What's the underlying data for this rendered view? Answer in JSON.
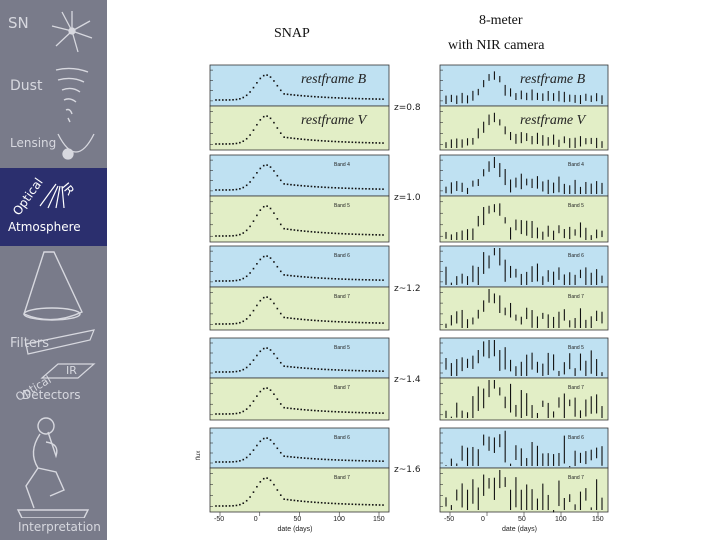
{
  "sidebar": {
    "items": [
      {
        "label": "SN",
        "icon": "burst-icon"
      },
      {
        "label": "Dust",
        "icon": "tornado-icon"
      },
      {
        "label": "Lensing",
        "icon": "lens-icon"
      },
      {
        "label": "Atmosphere",
        "sub1": "Optical",
        "sub2": "IR",
        "icon": "atmosphere-icon"
      },
      {
        "label": "",
        "icon": "cone-icon"
      },
      {
        "label": "Filters",
        "icon": "filter-icon"
      },
      {
        "label": "Detectors",
        "sub1": "Optical",
        "sub2": "IR",
        "icon": "detector-icon"
      },
      {
        "label": "Interpretation",
        "icon": "thinker-icon"
      }
    ],
    "colors": {
      "bg": "#797b8a",
      "active": "#2b2f6e"
    }
  },
  "titles": {
    "left": "SNAP",
    "right_line1": "8-meter",
    "right_line2": "with NIR camera"
  },
  "redshifts": [
    "z=0.8",
    "z=1.0",
    "z~1.2",
    "z~1.4",
    "z~1.6"
  ],
  "panel_labels": {
    "row1_top": "restframe B",
    "row1_bottom": "restframe V",
    "row2_top": "Band 4",
    "row2_bottom": "Band 5",
    "row3_top": "Band 6",
    "row3_bottom": "Band 7",
    "row4_top": "Band 5",
    "row4_bottom": "Band 7",
    "row5_top": "Band 6",
    "row5_bottom": "Band 7"
  },
  "axes": {
    "xlabel": "date (days)",
    "xticks": [
      "-50",
      "0",
      "50",
      "100",
      "150"
    ],
    "ylabel": "flux"
  },
  "colors": {
    "blue": "#bfe1f2",
    "green": "#e2eec6"
  }
}
